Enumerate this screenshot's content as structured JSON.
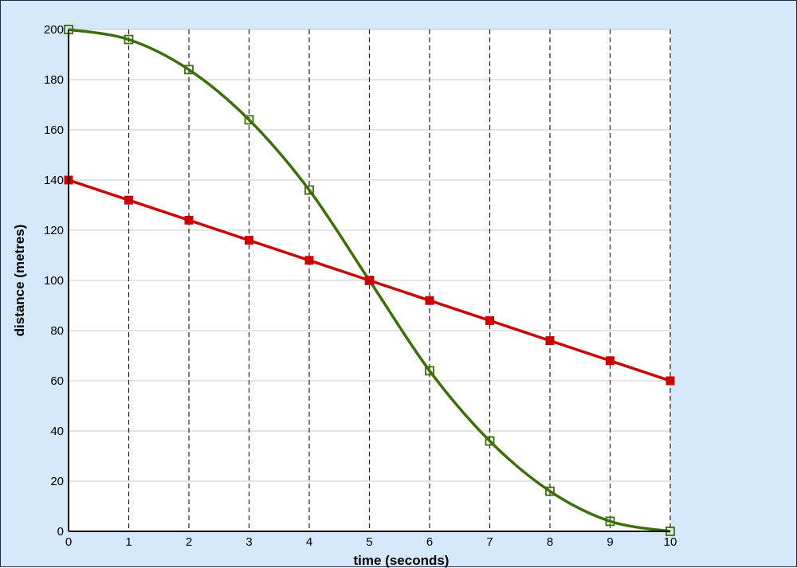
{
  "chart_data": {
    "type": "line",
    "xlabel": "time (seconds)",
    "ylabel": "distance (metres)",
    "xlim": [
      0,
      10
    ],
    "ylim": [
      0,
      200
    ],
    "x_ticks": [
      0,
      1,
      2,
      3,
      4,
      5,
      6,
      7,
      8,
      9,
      10
    ],
    "y_ticks": [
      0,
      20,
      40,
      60,
      80,
      100,
      120,
      140,
      160,
      180,
      200
    ],
    "grid": {
      "horizontal": "solid light gray",
      "vertical": "dashed black"
    },
    "background": "#d6e8fb",
    "plot_background": "#ffffff",
    "series": [
      {
        "color": "#3d6e0a",
        "marker": "hollow-square",
        "curve": "smooth",
        "x": [
          0,
          1,
          2,
          3,
          4,
          5,
          6,
          7,
          8,
          9,
          10
        ],
        "values": [
          200,
          196,
          184,
          164,
          136,
          100,
          64,
          36,
          16,
          4,
          0
        ]
      },
      {
        "color": "#cc0000",
        "marker": "filled-square",
        "curve": "straight",
        "x": [
          0,
          1,
          2,
          3,
          4,
          5,
          6,
          7,
          8,
          9,
          10
        ],
        "values": [
          140,
          132,
          124,
          116,
          108,
          100,
          92,
          84,
          76,
          68,
          60
        ]
      }
    ]
  }
}
